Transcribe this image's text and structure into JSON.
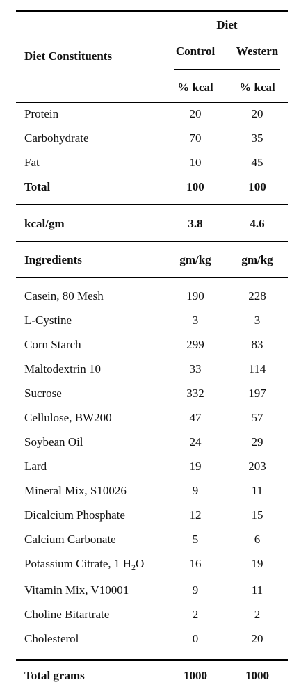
{
  "table": {
    "header": {
      "group_label": "Diet",
      "row_label": "Diet Constituents",
      "columns": [
        "Control",
        "Western"
      ],
      "units": [
        "% kcal",
        "% kcal"
      ]
    },
    "composition": [
      {
        "label": "Protein",
        "control": "20",
        "western": "20"
      },
      {
        "label": "Carbohydrate",
        "control": "70",
        "western": "35"
      },
      {
        "label": "Fat",
        "control": "10",
        "western": "45"
      }
    ],
    "composition_total": {
      "label": "Total",
      "control": "100",
      "western": "100"
    },
    "energy": {
      "label": "kcal/gm",
      "control": "3.8",
      "western": "4.6"
    },
    "ingredients_header": {
      "label": "Ingredients",
      "control": "gm/kg",
      "western": "gm/kg"
    },
    "ingredients": [
      {
        "label": "Casein, 80 Mesh",
        "control": "190",
        "western": "228"
      },
      {
        "label": "L-Cystine",
        "control": "3",
        "western": "3"
      },
      {
        "label": "Corn Starch",
        "control": "299",
        "western": "83"
      },
      {
        "label": "Maltodextrin 10",
        "control": "33",
        "western": "114"
      },
      {
        "label": "Sucrose",
        "control": "332",
        "western": "197"
      },
      {
        "label": "Cellulose, BW200",
        "control": "47",
        "western": "57"
      },
      {
        "label": "Soybean Oil",
        "control": "24",
        "western": "29"
      },
      {
        "label": "Lard",
        "control": "19",
        "western": "203"
      },
      {
        "label": "Mineral Mix, S10026",
        "control": "9",
        "western": "11"
      },
      {
        "label": "Dicalcium Phosphate",
        "control": "12",
        "western": "15"
      },
      {
        "label": "Calcium Carbonate",
        "control": "5",
        "western": "6"
      },
      {
        "label": "Potassium Citrate, 1 H",
        "label_sub": "2",
        "label_tail": "O",
        "control": "16",
        "western": "19"
      },
      {
        "label": "Vitamin Mix, V10001",
        "control": "9",
        "western": "11"
      },
      {
        "label": "Choline Bitartrate",
        "control": "2",
        "western": "2"
      },
      {
        "label": "Cholesterol",
        "control": "0",
        "western": "20"
      }
    ],
    "grand_total": {
      "label": "Total grams",
      "control": "1000",
      "western": "1000"
    }
  }
}
